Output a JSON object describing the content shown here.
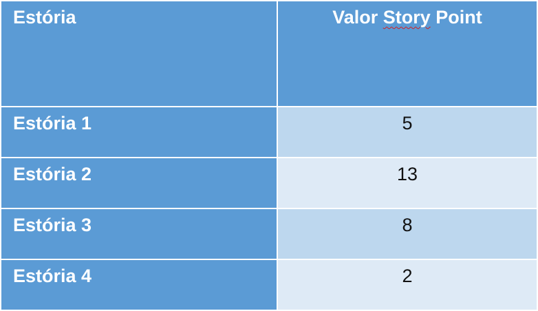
{
  "table": {
    "header": {
      "col1": "Estória",
      "col2_prefix": "Valor ",
      "col2_flagged": "Story",
      "col2_suffix": " Point"
    },
    "rows": [
      {
        "name": "Estória 1",
        "value": "5"
      },
      {
        "name": "Estória 2",
        "value": "13"
      },
      {
        "name": "Estória 3",
        "value": "8"
      },
      {
        "name": "Estória 4",
        "value": "2"
      }
    ]
  },
  "colors": {
    "header_and_name_cells": "#5b9bd5",
    "value_cell_band_1": "#bdd7ee",
    "value_cell_band_2": "#deeaf6",
    "spellcheck_underline": "#d42020"
  }
}
